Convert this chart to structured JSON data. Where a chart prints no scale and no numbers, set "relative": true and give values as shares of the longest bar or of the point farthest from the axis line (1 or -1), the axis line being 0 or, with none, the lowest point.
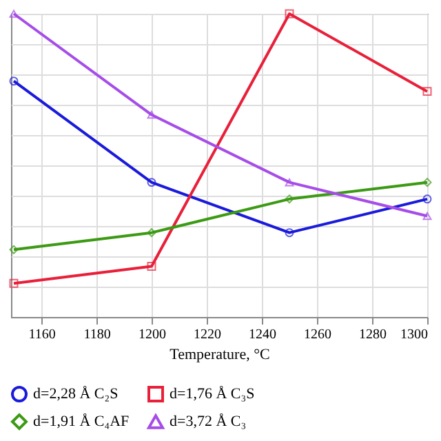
{
  "chart_data": {
    "type": "line",
    "relative": true,
    "xlabel": "Temperature, °C",
    "x": [
      1150,
      1200,
      1250,
      1300
    ],
    "xlim": [
      1149,
      1300
    ],
    "xticks": [
      1160,
      1180,
      1200,
      1220,
      1240,
      1260,
      1280,
      1300
    ],
    "grid": true,
    "legend": "bottom",
    "series": [
      {
        "name": "d=2,28 Å C₂S",
        "color": "#1a1adb",
        "marker": "circle",
        "values": [
          0.778,
          0.444,
          0.278,
          0.389
        ]
      },
      {
        "name": "d=1,76 Å C₃S",
        "color": "#e8203a",
        "marker": "square",
        "values": [
          0.111,
          0.167,
          1,
          0.744
        ]
      },
      {
        "name": "d=1,91 Å C₄AF",
        "color": "#3c9a14",
        "marker": "diamond",
        "values": [
          0.222,
          0.278,
          0.389,
          0.444
        ]
      },
      {
        "name": "d=3,72 Å C₃",
        "color": "#a64de8",
        "marker": "triangle",
        "values": [
          1,
          0.667,
          0.444,
          0.333
        ]
      }
    ]
  }
}
